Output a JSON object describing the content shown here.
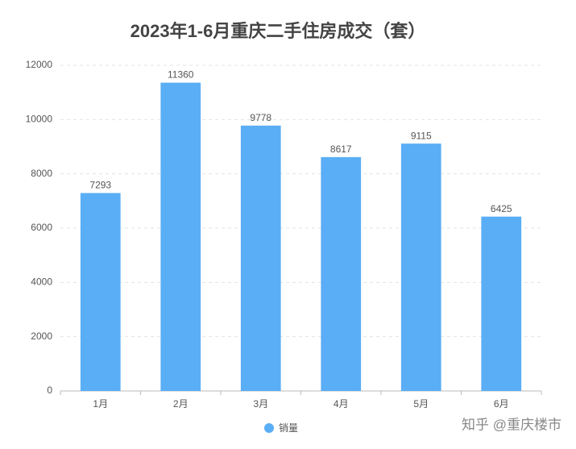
{
  "chart_data": {
    "type": "bar",
    "title": "2023年1-6月重庆二手住房成交（套）",
    "categories": [
      "1月",
      "2月",
      "3月",
      "4月",
      "5月",
      "6月"
    ],
    "series": [
      {
        "name": "销量",
        "color": "#5aaef5",
        "values": [
          7293,
          11360,
          9778,
          8617,
          9115,
          6425
        ]
      }
    ],
    "ylim": [
      0,
      12000
    ],
    "yticks": [
      0,
      2000,
      4000,
      6000,
      8000,
      10000,
      12000
    ],
    "grid": true,
    "legend": "bottom",
    "watermark": "知乎 @重庆楼市"
  }
}
